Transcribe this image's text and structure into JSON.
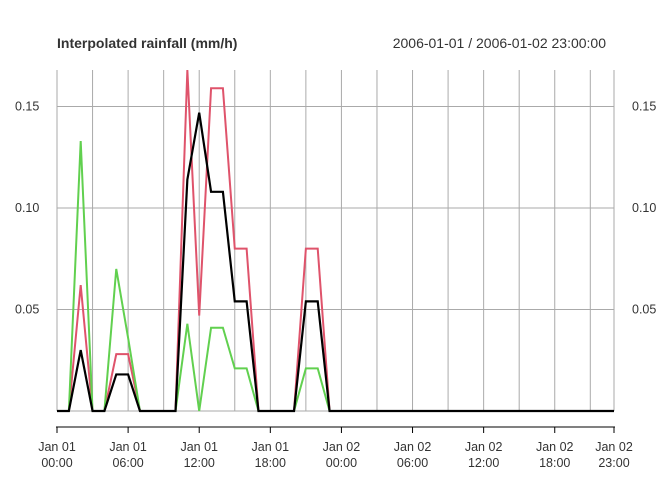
{
  "chart_data": {
    "type": "line",
    "title": "Interpolated rainfall (mm/h)",
    "date_range": "2006-01-01 / 2006-01-02 23:00:00",
    "xlabel": "",
    "ylabel": "",
    "x_unit": "hour",
    "x": [
      "2006-01-01 00:00",
      "2006-01-01 01:00",
      "2006-01-01 02:00",
      "2006-01-01 03:00",
      "2006-01-01 04:00",
      "2006-01-01 05:00",
      "2006-01-01 06:00",
      "2006-01-01 07:00",
      "2006-01-01 08:00",
      "2006-01-01 09:00",
      "2006-01-01 10:00",
      "2006-01-01 11:00",
      "2006-01-01 12:00",
      "2006-01-01 13:00",
      "2006-01-01 14:00",
      "2006-01-01 15:00",
      "2006-01-01 16:00",
      "2006-01-01 17:00",
      "2006-01-01 18:00",
      "2006-01-01 19:00",
      "2006-01-01 20:00",
      "2006-01-01 21:00",
      "2006-01-01 22:00",
      "2006-01-01 23:00",
      "2006-01-02 00:00",
      "2006-01-02 01:00",
      "2006-01-02 02:00",
      "2006-01-02 03:00",
      "2006-01-02 04:00",
      "2006-01-02 05:00",
      "2006-01-02 06:00",
      "2006-01-02 07:00",
      "2006-01-02 08:00",
      "2006-01-02 09:00",
      "2006-01-02 10:00",
      "2006-01-02 11:00",
      "2006-01-02 12:00",
      "2006-01-02 13:00",
      "2006-01-02 14:00",
      "2006-01-02 15:00",
      "2006-01-02 16:00",
      "2006-01-02 17:00",
      "2006-01-02 18:00",
      "2006-01-02 19:00",
      "2006-01-02 20:00",
      "2006-01-02 21:00",
      "2006-01-02 22:00",
      "2006-01-02 23:00"
    ],
    "series": [
      {
        "color": "#DF536B",
        "values": [
          0,
          0,
          0.062,
          0,
          0,
          0.028,
          0.028,
          0,
          0,
          0,
          0,
          0.168,
          0.047,
          0.159,
          0.159,
          0.08,
          0.08,
          0,
          0,
          0,
          0,
          0.08,
          0.08,
          0,
          0,
          0,
          0,
          0,
          0,
          0,
          0,
          0,
          0,
          0,
          0,
          0,
          0,
          0,
          0,
          0,
          0,
          0,
          0,
          0,
          0,
          0,
          0,
          0
        ]
      },
      {
        "color": "#61D04F",
        "values": [
          0,
          0,
          0.133,
          0,
          0,
          0.07,
          0.036,
          0,
          0,
          0,
          0,
          0.043,
          0,
          0.041,
          0.041,
          0.021,
          0.021,
          0,
          0,
          0,
          0,
          0.021,
          0.021,
          0,
          0,
          0,
          0,
          0,
          0,
          0,
          0,
          0,
          0,
          0,
          0,
          0,
          0,
          0,
          0,
          0,
          0,
          0,
          0,
          0,
          0,
          0,
          0,
          0
        ]
      },
      {
        "color": "#000000",
        "values": [
          0,
          0,
          0.03,
          0,
          0,
          0.018,
          0.018,
          0,
          0,
          0,
          0,
          0.114,
          0.147,
          0.108,
          0.108,
          0.054,
          0.054,
          0,
          0,
          0,
          0,
          0.054,
          0.054,
          0,
          0,
          0,
          0,
          0,
          0,
          0,
          0,
          0,
          0,
          0,
          0,
          0,
          0,
          0,
          0,
          0,
          0,
          0,
          0,
          0,
          0,
          0,
          0,
          0
        ]
      }
    ],
    "ylim": [
      0,
      0.168
    ],
    "y_ticks": [
      0.05,
      0.1,
      0.15
    ],
    "y_tick_labels": [
      "0.05",
      "0.10",
      "0.15"
    ],
    "x_ticks": [
      {
        "label": [
          "Jan 01",
          "00:00"
        ],
        "hour": 0
      },
      {
        "label": [
          "Jan 01",
          "06:00"
        ],
        "hour": 6
      },
      {
        "label": [
          "Jan 01",
          "12:00"
        ],
        "hour": 12
      },
      {
        "label": [
          "Jan 01",
          "18:00"
        ],
        "hour": 18
      },
      {
        "label": [
          "Jan 02",
          "00:00"
        ],
        "hour": 24
      },
      {
        "label": [
          "Jan 02",
          "06:00"
        ],
        "hour": 30
      },
      {
        "label": [
          "Jan 02",
          "12:00"
        ],
        "hour": 36
      },
      {
        "label": [
          "Jan 02",
          "18:00"
        ],
        "hour": 42
      },
      {
        "label": [
          "Jan 02",
          "23:00"
        ],
        "hour": 47
      }
    ],
    "grid": true,
    "grid_color": "#aaaaaa",
    "legend": "none"
  }
}
